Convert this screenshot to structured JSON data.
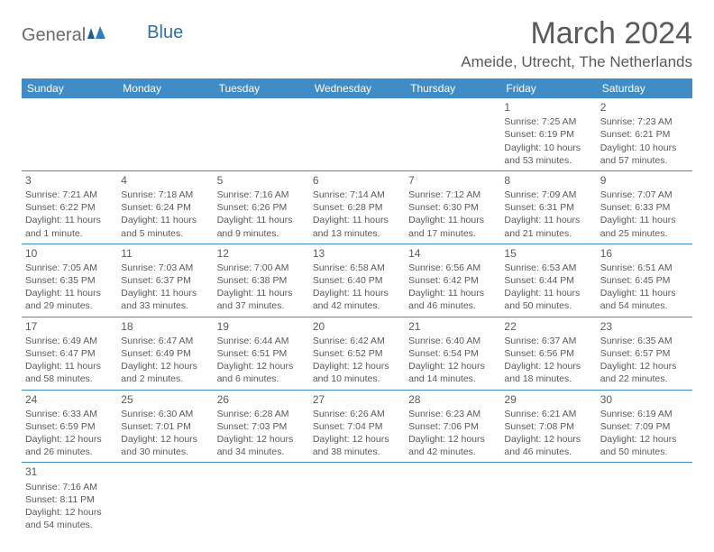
{
  "logo": {
    "general": "General",
    "blue": "Blue"
  },
  "title": "March 2024",
  "location": "Ameide, Utrecht, The Netherlands",
  "colors": {
    "header_bg": "#3f8cc6",
    "header_fg": "#ffffff",
    "text": "#5a5a5a",
    "rule": "#3f8cc6",
    "background": "#ffffff"
  },
  "typography": {
    "title_fontsize": 34,
    "location_fontsize": 17,
    "dayheader_fontsize": 12,
    "cell_fontsize": 10.5
  },
  "dayHeaders": [
    "Sunday",
    "Monday",
    "Tuesday",
    "Wednesday",
    "Thursday",
    "Friday",
    "Saturday"
  ],
  "weeks": [
    [
      {
        "empty": true
      },
      {
        "empty": true
      },
      {
        "empty": true
      },
      {
        "empty": true
      },
      {
        "empty": true
      },
      {
        "num": "1",
        "sunrise": "Sunrise: 7:25 AM",
        "sunset": "Sunset: 6:19 PM",
        "daylight": "Daylight: 10 hours and 53 minutes."
      },
      {
        "num": "2",
        "sunrise": "Sunrise: 7:23 AM",
        "sunset": "Sunset: 6:21 PM",
        "daylight": "Daylight: 10 hours and 57 minutes."
      }
    ],
    [
      {
        "num": "3",
        "sunrise": "Sunrise: 7:21 AM",
        "sunset": "Sunset: 6:22 PM",
        "daylight": "Daylight: 11 hours and 1 minute."
      },
      {
        "num": "4",
        "sunrise": "Sunrise: 7:18 AM",
        "sunset": "Sunset: 6:24 PM",
        "daylight": "Daylight: 11 hours and 5 minutes."
      },
      {
        "num": "5",
        "sunrise": "Sunrise: 7:16 AM",
        "sunset": "Sunset: 6:26 PM",
        "daylight": "Daylight: 11 hours and 9 minutes."
      },
      {
        "num": "6",
        "sunrise": "Sunrise: 7:14 AM",
        "sunset": "Sunset: 6:28 PM",
        "daylight": "Daylight: 11 hours and 13 minutes."
      },
      {
        "num": "7",
        "sunrise": "Sunrise: 7:12 AM",
        "sunset": "Sunset: 6:30 PM",
        "daylight": "Daylight: 11 hours and 17 minutes."
      },
      {
        "num": "8",
        "sunrise": "Sunrise: 7:09 AM",
        "sunset": "Sunset: 6:31 PM",
        "daylight": "Daylight: 11 hours and 21 minutes."
      },
      {
        "num": "9",
        "sunrise": "Sunrise: 7:07 AM",
        "sunset": "Sunset: 6:33 PM",
        "daylight": "Daylight: 11 hours and 25 minutes."
      }
    ],
    [
      {
        "num": "10",
        "sunrise": "Sunrise: 7:05 AM",
        "sunset": "Sunset: 6:35 PM",
        "daylight": "Daylight: 11 hours and 29 minutes."
      },
      {
        "num": "11",
        "sunrise": "Sunrise: 7:03 AM",
        "sunset": "Sunset: 6:37 PM",
        "daylight": "Daylight: 11 hours and 33 minutes."
      },
      {
        "num": "12",
        "sunrise": "Sunrise: 7:00 AM",
        "sunset": "Sunset: 6:38 PM",
        "daylight": "Daylight: 11 hours and 37 minutes."
      },
      {
        "num": "13",
        "sunrise": "Sunrise: 6:58 AM",
        "sunset": "Sunset: 6:40 PM",
        "daylight": "Daylight: 11 hours and 42 minutes."
      },
      {
        "num": "14",
        "sunrise": "Sunrise: 6:56 AM",
        "sunset": "Sunset: 6:42 PM",
        "daylight": "Daylight: 11 hours and 46 minutes."
      },
      {
        "num": "15",
        "sunrise": "Sunrise: 6:53 AM",
        "sunset": "Sunset: 6:44 PM",
        "daylight": "Daylight: 11 hours and 50 minutes."
      },
      {
        "num": "16",
        "sunrise": "Sunrise: 6:51 AM",
        "sunset": "Sunset: 6:45 PM",
        "daylight": "Daylight: 11 hours and 54 minutes."
      }
    ],
    [
      {
        "num": "17",
        "sunrise": "Sunrise: 6:49 AM",
        "sunset": "Sunset: 6:47 PM",
        "daylight": "Daylight: 11 hours and 58 minutes."
      },
      {
        "num": "18",
        "sunrise": "Sunrise: 6:47 AM",
        "sunset": "Sunset: 6:49 PM",
        "daylight": "Daylight: 12 hours and 2 minutes."
      },
      {
        "num": "19",
        "sunrise": "Sunrise: 6:44 AM",
        "sunset": "Sunset: 6:51 PM",
        "daylight": "Daylight: 12 hours and 6 minutes."
      },
      {
        "num": "20",
        "sunrise": "Sunrise: 6:42 AM",
        "sunset": "Sunset: 6:52 PM",
        "daylight": "Daylight: 12 hours and 10 minutes."
      },
      {
        "num": "21",
        "sunrise": "Sunrise: 6:40 AM",
        "sunset": "Sunset: 6:54 PM",
        "daylight": "Daylight: 12 hours and 14 minutes."
      },
      {
        "num": "22",
        "sunrise": "Sunrise: 6:37 AM",
        "sunset": "Sunset: 6:56 PM",
        "daylight": "Daylight: 12 hours and 18 minutes."
      },
      {
        "num": "23",
        "sunrise": "Sunrise: 6:35 AM",
        "sunset": "Sunset: 6:57 PM",
        "daylight": "Daylight: 12 hours and 22 minutes."
      }
    ],
    [
      {
        "num": "24",
        "sunrise": "Sunrise: 6:33 AM",
        "sunset": "Sunset: 6:59 PM",
        "daylight": "Daylight: 12 hours and 26 minutes."
      },
      {
        "num": "25",
        "sunrise": "Sunrise: 6:30 AM",
        "sunset": "Sunset: 7:01 PM",
        "daylight": "Daylight: 12 hours and 30 minutes."
      },
      {
        "num": "26",
        "sunrise": "Sunrise: 6:28 AM",
        "sunset": "Sunset: 7:03 PM",
        "daylight": "Daylight: 12 hours and 34 minutes."
      },
      {
        "num": "27",
        "sunrise": "Sunrise: 6:26 AM",
        "sunset": "Sunset: 7:04 PM",
        "daylight": "Daylight: 12 hours and 38 minutes."
      },
      {
        "num": "28",
        "sunrise": "Sunrise: 6:23 AM",
        "sunset": "Sunset: 7:06 PM",
        "daylight": "Daylight: 12 hours and 42 minutes."
      },
      {
        "num": "29",
        "sunrise": "Sunrise: 6:21 AM",
        "sunset": "Sunset: 7:08 PM",
        "daylight": "Daylight: 12 hours and 46 minutes."
      },
      {
        "num": "30",
        "sunrise": "Sunrise: 6:19 AM",
        "sunset": "Sunset: 7:09 PM",
        "daylight": "Daylight: 12 hours and 50 minutes."
      }
    ],
    [
      {
        "num": "31",
        "sunrise": "Sunrise: 7:16 AM",
        "sunset": "Sunset: 8:11 PM",
        "daylight": "Daylight: 12 hours and 54 minutes."
      },
      {
        "empty": true
      },
      {
        "empty": true
      },
      {
        "empty": true
      },
      {
        "empty": true
      },
      {
        "empty": true
      },
      {
        "empty": true
      }
    ]
  ]
}
